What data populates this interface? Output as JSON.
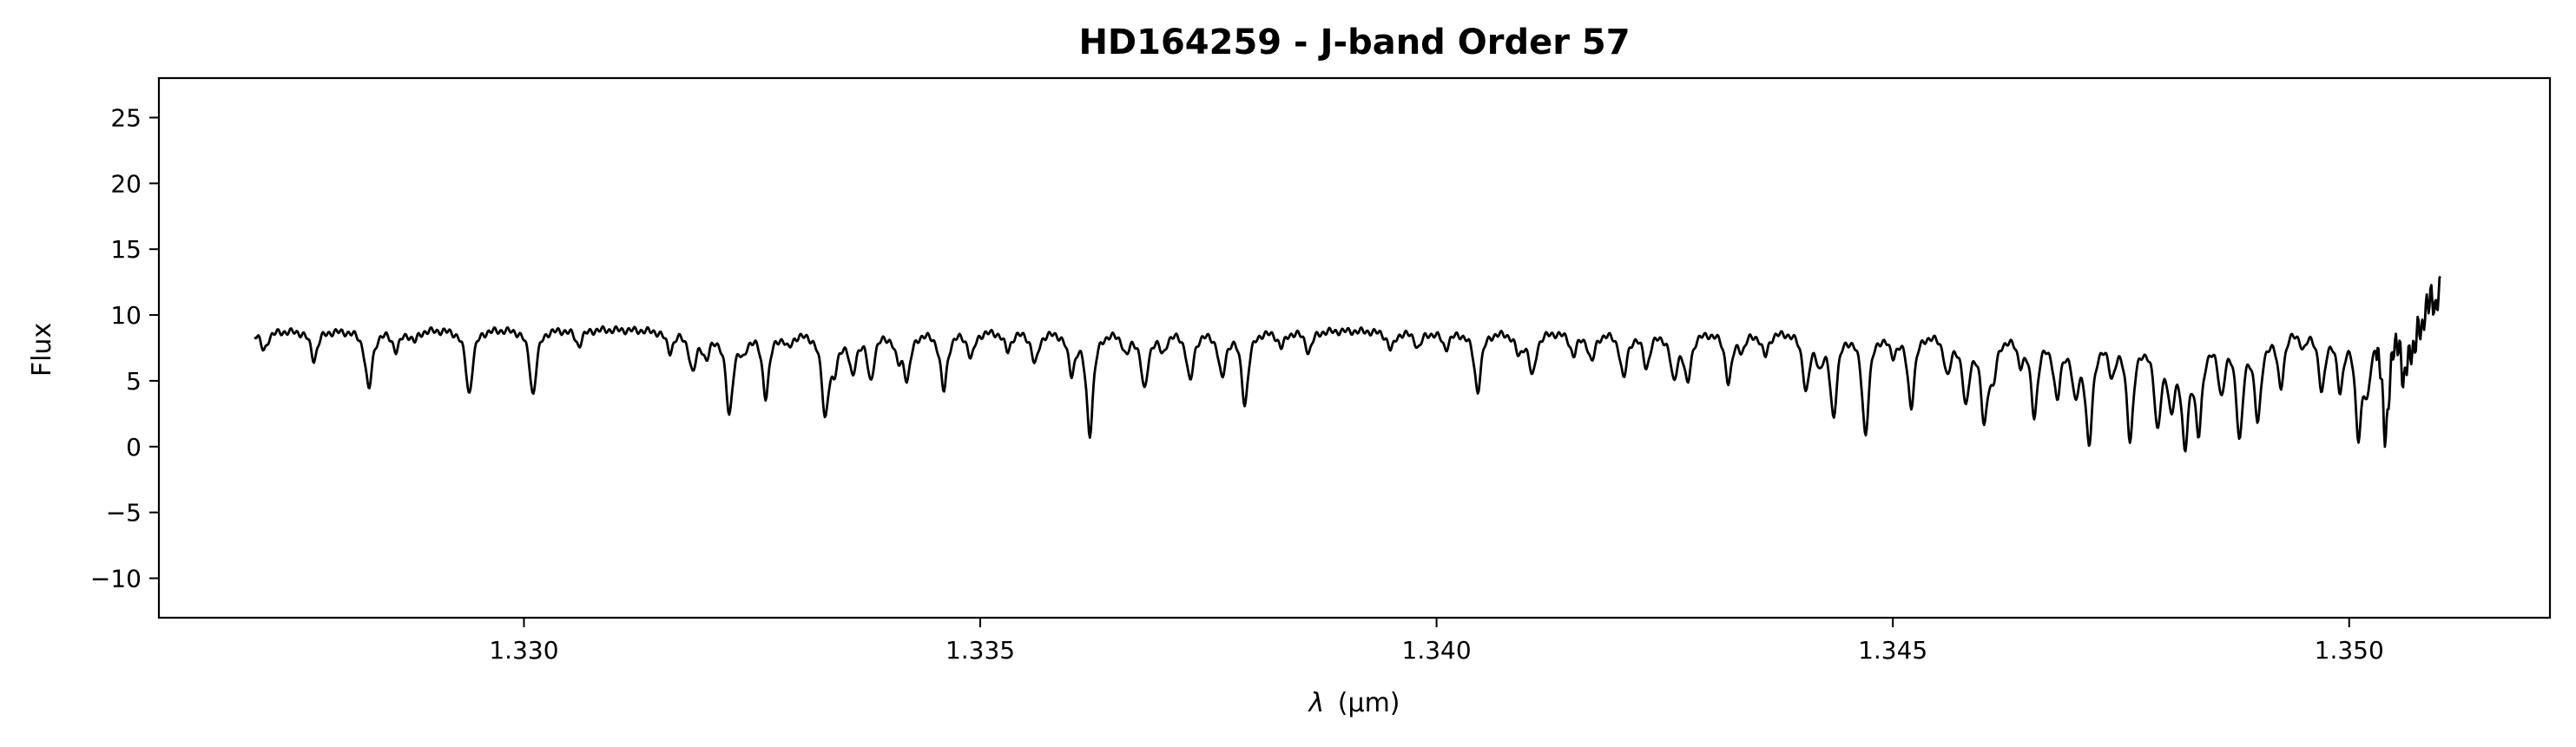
{
  "chart_data": {
    "type": "line",
    "title": "HD164259 - J-band Order 57",
    "xlabel_symbol": "λ",
    "xlabel_unit": "(μm)",
    "ylabel": "Flux",
    "xlim": [
      1.326,
      1.3522
    ],
    "ylim": [
      -13.0,
      28.0
    ],
    "xticks": [
      1.33,
      1.335,
      1.34,
      1.345,
      1.35
    ],
    "xtick_labels": [
      "1.330",
      "1.335",
      "1.340",
      "1.345",
      "1.350"
    ],
    "yticks": [
      -10,
      -5,
      0,
      5,
      10,
      15,
      20,
      25
    ],
    "ytick_labels": [
      "−10",
      "−5",
      "0",
      "5",
      "10",
      "15",
      "20",
      "25"
    ],
    "grid": false,
    "line_color": "#000000",
    "continuum": [
      [
        1.327,
        8.8
      ],
      [
        1.33,
        9.0
      ],
      [
        1.333,
        8.8
      ],
      [
        1.335,
        8.9
      ],
      [
        1.338,
        8.9
      ],
      [
        1.34,
        8.8
      ],
      [
        1.344,
        8.9
      ],
      [
        1.346,
        8.8
      ],
      [
        1.347,
        8.7
      ],
      [
        1.348,
        8.4
      ],
      [
        1.349,
        9.0
      ],
      [
        1.3495,
        9.5
      ],
      [
        1.35,
        9.8
      ],
      [
        1.3505,
        10.5
      ],
      [
        1.3508,
        12.0
      ],
      [
        1.351,
        14.0
      ]
    ],
    "absorption_lines": [
      [
        1.32715,
        1.5
      ],
      [
        1.3277,
        2.2
      ],
      [
        1.3283,
        4.5
      ],
      [
        1.3286,
        1.5
      ],
      [
        1.3288,
        0.8
      ],
      [
        1.3294,
        4.9
      ],
      [
        1.3301,
        5.0
      ],
      [
        1.3306,
        1.2
      ],
      [
        1.3316,
        1.5
      ],
      [
        1.332,
        1.8
      ],
      [
        1.3324,
        1.4
      ],
      [
        1.3329,
        1.0
      ],
      [
        1.3333,
        6.0
      ],
      [
        1.3341,
        1.8
      ],
      [
        1.3346,
        1.5
      ],
      [
        1.3349,
        2.0
      ],
      [
        1.3353,
        1.5
      ],
      [
        1.3356,
        2.5
      ],
      [
        1.336,
        3.0
      ],
      [
        1.3366,
        1.6
      ],
      [
        1.337,
        1.5
      ],
      [
        1.3379,
        5.5
      ],
      [
        1.3383,
        1.2
      ],
      [
        1.3386,
        1.6
      ],
      [
        1.3395,
        1.4
      ],
      [
        1.3398,
        1.2
      ],
      [
        1.3401,
        1.2
      ],
      [
        1.3409,
        1.6
      ],
      [
        1.3417,
        2.2
      ],
      [
        1.3423,
        2.6
      ],
      [
        1.3426,
        3.5
      ],
      [
        1.3432,
        3.8
      ],
      [
        1.3436,
        1.8
      ],
      [
        1.3442,
        2.0
      ],
      [
        1.3447,
        2.4
      ],
      [
        1.345,
        1.5
      ],
      [
        1.3456,
        3.0
      ],
      [
        1.3461,
        2.8
      ],
      [
        1.3464,
        1.8
      ],
      [
        1.3468,
        4.6
      ],
      [
        1.347,
        4.2
      ],
      [
        1.3474,
        2.5
      ],
      [
        1.3479,
        6.2
      ],
      [
        1.3482,
        7.6
      ],
      [
        1.3486,
        4.0
      ],
      [
        1.349,
        6.5
      ],
      [
        1.3495,
        1.5
      ],
      [
        1.3499,
        4.8
      ],
      [
        1.3502,
        4.5
      ],
      [
        1.3507,
        3.0
      ],
      [
        1.3508,
        1.8
      ],
      [
        1.35095,
        2.5
      ],
      [
        1.33185,
        3.0
      ],
      [
        1.33225,
        6.2
      ],
      [
        1.33265,
        4.8
      ],
      [
        1.3334,
        2.5
      ],
      [
        1.3336,
        3.0
      ],
      [
        1.3338,
        3.5
      ],
      [
        1.3342,
        3.4
      ],
      [
        1.3346,
        3.0
      ],
      [
        1.3362,
        7.7
      ],
      [
        1.3368,
        4.4
      ],
      [
        1.3373,
        3.8
      ],
      [
        1.33765,
        3.5
      ],
      [
        1.34045,
        4.5
      ],
      [
        1.34105,
        3.3
      ],
      [
        1.3415,
        1.7
      ],
      [
        1.34205,
        3.5
      ],
      [
        1.34275,
        3.7
      ],
      [
        1.34335,
        1.2
      ],
      [
        1.34405,
        4.3
      ],
      [
        1.34435,
        6.2
      ],
      [
        1.3447,
        5.3
      ],
      [
        1.3452,
        5.5
      ],
      [
        1.3458,
        5.2
      ],
      [
        1.346,
        6.3
      ],
      [
        1.34655,
        5.9
      ],
      [
        1.34715,
        8.0
      ],
      [
        1.3476,
        7.5
      ],
      [
        1.34805,
        4.5
      ],
      [
        1.34835,
        6.8
      ],
      [
        1.3488,
        7.6
      ],
      [
        1.34925,
        4.2
      ],
      [
        1.3497,
        5.0
      ],
      [
        1.3501,
        8.0
      ],
      [
        1.3504,
        9.0
      ],
      [
        1.3506,
        4.8
      ]
    ]
  }
}
